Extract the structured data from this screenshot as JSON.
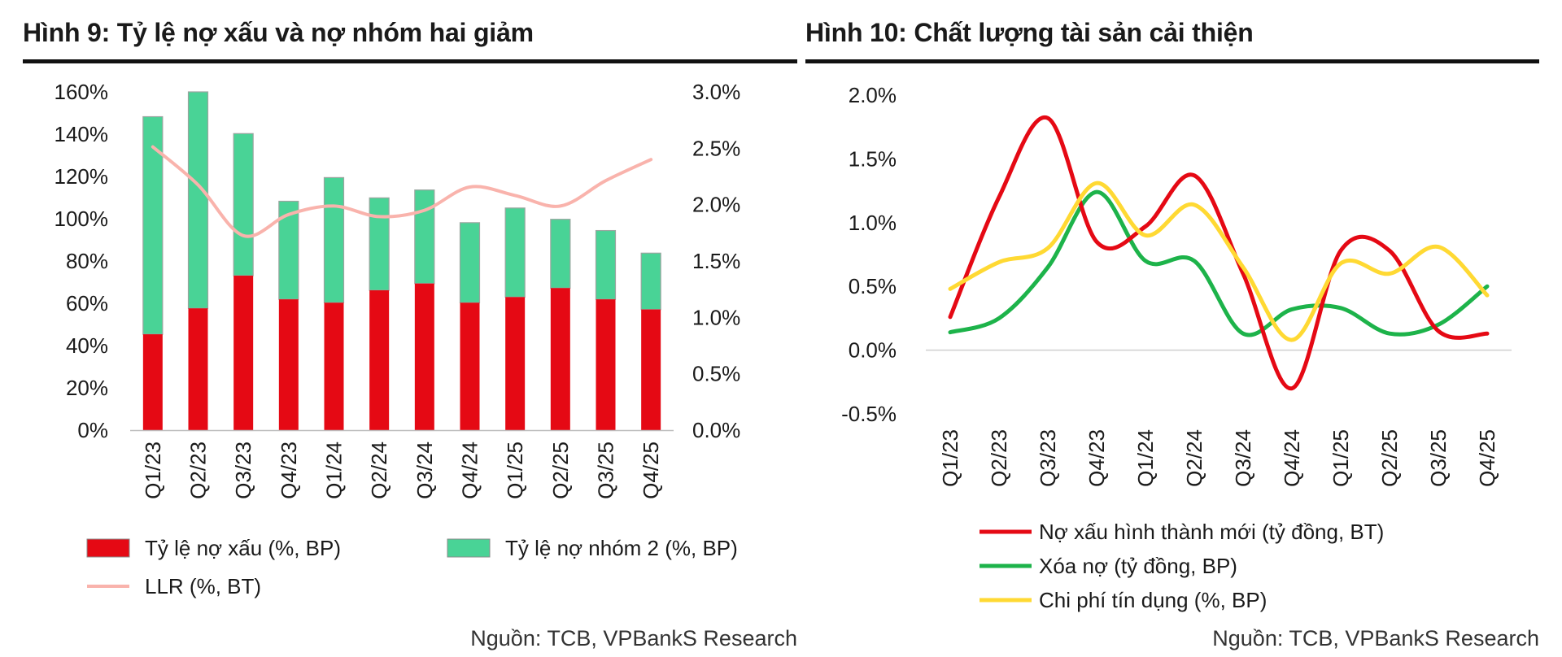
{
  "left_chart": {
    "title": "Hình 9: Tỷ lệ nợ xấu và nợ nhóm hai giảm",
    "source": "Nguồn: TCB, VPBankS Research",
    "chart_data": {
      "type": "bar",
      "stacked": true,
      "categories": [
        "Q1/23",
        "Q2/23",
        "Q3/23",
        "Q4/23",
        "Q1/24",
        "Q2/24",
        "Q3/24",
        "Q4/24",
        "Q1/25",
        "Q2/25",
        "Q3/25",
        "Q4/25"
      ],
      "series": [
        {
          "name": "Tỷ lệ nợ xấu (%, BP)",
          "axis": "right",
          "color": "#e50914",
          "values": [
            0.85,
            1.08,
            1.37,
            1.16,
            1.13,
            1.24,
            1.3,
            1.13,
            1.18,
            1.26,
            1.16,
            1.07
          ]
        },
        {
          "name": "Tỷ lệ nợ nhóm 2 (%, BP)",
          "axis": "right",
          "color": "#49d396",
          "values": [
            1.93,
            1.92,
            1.26,
            0.87,
            1.11,
            0.82,
            0.83,
            0.71,
            0.79,
            0.61,
            0.61,
            0.5
          ]
        },
        {
          "name": "LLR (%, BT)",
          "axis": "left",
          "type": "line",
          "color": "#f9b3ac",
          "values": [
            134,
            116,
            92,
            102,
            106,
            101,
            104,
            115,
            111,
            106,
            118,
            128
          ]
        }
      ],
      "yleft": {
        "ticks": [
          "0%",
          "20%",
          "40%",
          "60%",
          "80%",
          "100%",
          "120%",
          "140%",
          "160%"
        ],
        "ylim": [
          0,
          160
        ]
      },
      "yright": {
        "ticks": [
          "0.0%",
          "0.5%",
          "1.0%",
          "1.5%",
          "2.0%",
          "2.5%",
          "3.0%"
        ],
        "ylim": [
          0,
          3.0
        ]
      },
      "legend": [
        "Tỷ lệ nợ xấu (%, BP)",
        "Tỷ lệ nợ nhóm 2 (%, BP)",
        "LLR (%, BT)"
      ],
      "legend_position": "bottom"
    }
  },
  "right_chart": {
    "title": "Hình 10: Chất lượng tài sản cải thiện",
    "source": "Nguồn: TCB, VPBankS Research",
    "chart_data": {
      "type": "line",
      "smooth": true,
      "categories": [
        "Q1/23",
        "Q2/23",
        "Q3/23",
        "Q4/23",
        "Q1/24",
        "Q2/24",
        "Q3/24",
        "Q4/24",
        "Q1/25",
        "Q2/25",
        "Q3/25",
        "Q4/25"
      ],
      "series": [
        {
          "name": "Nợ xấu hình thành mới (tỷ đồng, BT)",
          "color": "#e50914",
          "values": [
            0.26,
            1.2,
            1.82,
            0.85,
            0.97,
            1.37,
            0.6,
            -0.3,
            0.78,
            0.78,
            0.15,
            0.13
          ]
        },
        {
          "name": "Xóa nợ (tỷ đồng, BP)",
          "color": "#1db34a",
          "values": [
            0.14,
            0.25,
            0.65,
            1.24,
            0.7,
            0.7,
            0.13,
            0.32,
            0.33,
            0.13,
            0.2,
            0.5
          ]
        },
        {
          "name": "Chi phí tín dụng (%, BP)",
          "color": "#ffd933",
          "values": [
            0.48,
            0.69,
            0.8,
            1.31,
            0.9,
            1.14,
            0.65,
            0.08,
            0.68,
            0.6,
            0.81,
            0.43
          ]
        }
      ],
      "yticks": [
        "-0.5%",
        "0.0%",
        "0.5%",
        "1.0%",
        "1.5%",
        "2.0%"
      ],
      "ylim": [
        -0.5,
        2.0
      ],
      "legend": [
        "Nợ xấu hình thành mới (tỷ đồng, BT)",
        "Xóa nợ (tỷ đồng, BP)",
        "Chi phí tín dụng (%, BP)"
      ],
      "legend_position": "bottom"
    }
  }
}
